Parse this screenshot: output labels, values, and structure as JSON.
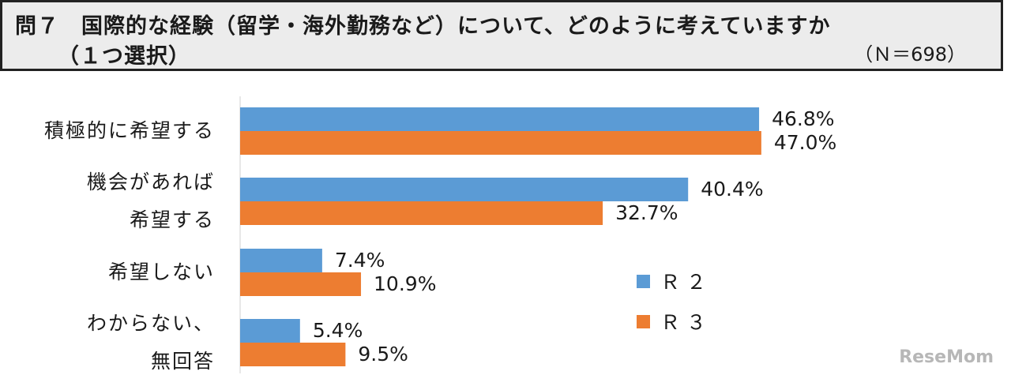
{
  "header": {
    "title_line1": "問７　国際的な経験（留学・海外勤務など）について、どのように考えていますか",
    "title_line2": "（１つ選択）",
    "sample_size": "（Ｎ＝698）"
  },
  "watermark": "ReseMom",
  "chart_data": {
    "type": "bar",
    "orientation": "horizontal",
    "categories": [
      "積極的に希望する",
      "機会があれば希望する",
      "希望しない",
      "わからない、無回答"
    ],
    "category_lines": [
      [
        "積極的に希望する"
      ],
      [
        "機会があれば",
        "希望する"
      ],
      [
        "希望しない"
      ],
      [
        "わからない、",
        "無回答"
      ]
    ],
    "series": [
      {
        "name": "Ｒ２",
        "legend_label": "Ｒ ２",
        "color": "#5b9bd5",
        "values": [
          46.8,
          40.4,
          7.4,
          5.4
        ],
        "labels": [
          "46.8%",
          "40.4%",
          "7.4%",
          "5.4%"
        ]
      },
      {
        "name": "Ｒ３",
        "legend_label": "Ｒ ３",
        "color": "#ed7d31",
        "values": [
          47.0,
          32.7,
          10.9,
          9.5
        ],
        "labels": [
          "47.0%",
          "32.7%",
          "10.9%",
          "9.5%"
        ]
      }
    ],
    "xlim": [
      0,
      60
    ],
    "grid": false,
    "legend_position": "bottom-center"
  }
}
